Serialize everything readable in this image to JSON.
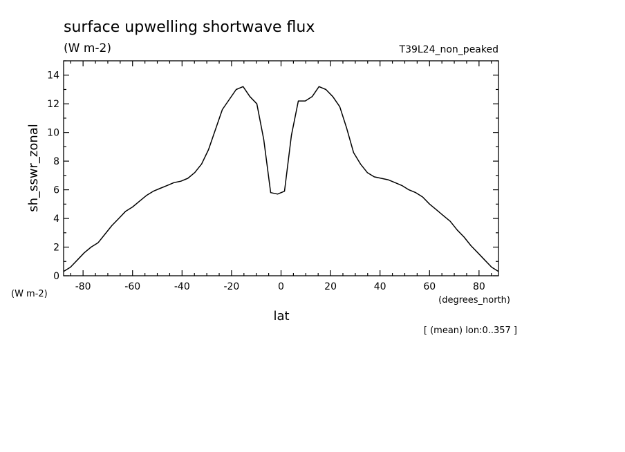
{
  "chart_data": {
    "type": "line",
    "title": "surface upwelling shortwave flux",
    "subtitle": "(W m-2)",
    "run_label": "T39L24_non_peaked",
    "ylabel": "sh_sswr_zonal",
    "y_units": "(W m-2)",
    "xlabel": "lat",
    "x_units": "(degrees_north)",
    "footnote": "[ (mean) lon:0..357 ]",
    "xlim": [
      -87.8638,
      87.8638
    ],
    "ylim": [
      0,
      15
    ],
    "x_ticks": [
      -80,
      -60,
      -40,
      -20,
      0,
      20,
      40,
      60,
      80
    ],
    "x_tick_labels": [
      "-80",
      "-60",
      "-40",
      "-20",
      "0",
      "20",
      "40",
      "60",
      "80"
    ],
    "y_ticks": [
      0,
      2,
      4,
      6,
      8,
      10,
      12,
      14
    ],
    "y_tick_labels": [
      "0",
      "2",
      "4",
      "6",
      "8",
      "10",
      "12",
      "14"
    ],
    "grid": false,
    "line_color": "#000000",
    "series": [
      {
        "x": [
          -87.86,
          -85.1,
          -82.31,
          -79.53,
          -76.74,
          -73.95,
          -71.16,
          -68.37,
          -65.58,
          -62.79,
          -60.0,
          -57.21,
          -54.42,
          -51.63,
          -48.84,
          -46.05,
          -43.26,
          -40.47,
          -37.67,
          -34.88,
          -32.09,
          -29.3,
          -26.51,
          -23.72,
          -20.93,
          -18.14,
          -15.35,
          -12.56,
          -9.77,
          -6.98,
          -4.19,
          -1.4,
          1.4,
          4.19,
          6.98,
          9.77,
          12.56,
          15.35,
          18.14,
          20.93,
          23.72,
          26.51,
          29.3,
          32.09,
          34.88,
          37.67,
          40.47,
          43.26,
          46.05,
          48.84,
          51.63,
          54.42,
          57.21,
          60.0,
          62.79,
          65.58,
          68.37,
          71.16,
          73.95,
          76.74,
          79.53,
          82.31,
          85.1,
          87.86
        ],
        "y": [
          0.3,
          0.6,
          1.1,
          1.6,
          2.0,
          2.3,
          2.9,
          3.5,
          4.0,
          4.5,
          4.8,
          5.2,
          5.6,
          5.9,
          6.1,
          6.3,
          6.5,
          6.6,
          6.8,
          7.2,
          7.8,
          8.8,
          10.2,
          11.6,
          12.3,
          13.0,
          13.2,
          12.5,
          12.0,
          9.5,
          5.8,
          5.7,
          5.9,
          9.8,
          12.2,
          12.2,
          12.5,
          13.2,
          13.0,
          12.5,
          11.8,
          10.3,
          8.6,
          7.8,
          7.2,
          6.9,
          6.8,
          6.7,
          6.5,
          6.3,
          6.0,
          5.8,
          5.5,
          5.0,
          4.6,
          4.2,
          3.8,
          3.2,
          2.7,
          2.1,
          1.6,
          1.1,
          0.6,
          0.3
        ]
      }
    ]
  }
}
